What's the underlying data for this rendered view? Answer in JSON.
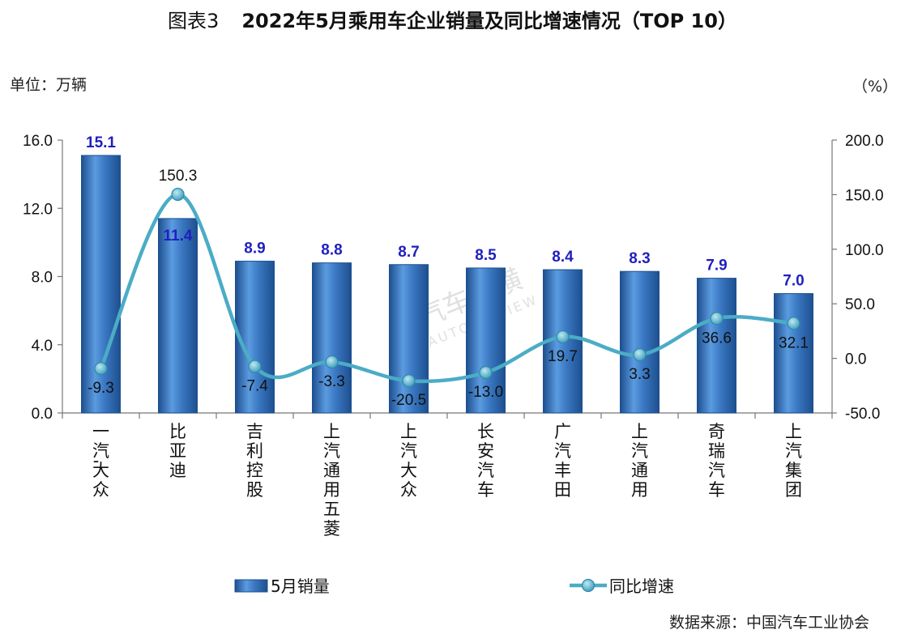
{
  "header": {
    "prefix": "图表3",
    "title": "2022年5月乘用车企业销量及同比增速情况（TOP 10）"
  },
  "unit_left": "单位：万辆",
  "unit_right": "（%）",
  "source": "数据来源：中国汽车工业协会",
  "watermark": {
    "cn": "汽车纵横",
    "en": "AUTO REVIEW"
  },
  "colors": {
    "bar": "#3a78c2",
    "bar_dark": "#1d4f8f",
    "line": "#4bacc6",
    "bar_label": "#1f1fbf"
  },
  "chart_data": {
    "type": "bar",
    "categories": [
      "一汽-大众",
      "比亚迪",
      "吉利控股",
      "上汽通用五菱",
      "上汽大众",
      "长安汽车",
      "广汽丰田",
      "上汽通用",
      "奇瑞汽车",
      "上汽集团"
    ],
    "series": [
      {
        "name": "5月销量",
        "type": "bar",
        "axis": "left",
        "values": [
          15.1,
          11.4,
          8.9,
          8.8,
          8.7,
          8.5,
          8.4,
          8.3,
          7.9,
          7.0
        ],
        "labels": [
          "15.1",
          "11.4",
          "8.9",
          "8.8",
          "8.7",
          "8.5",
          "8.4",
          "8.3",
          "7.9",
          "7.0"
        ]
      },
      {
        "name": "同比增速",
        "type": "line",
        "axis": "right",
        "values": [
          -9.3,
          150.3,
          -7.4,
          -3.3,
          -20.5,
          -13.0,
          19.7,
          3.3,
          36.6,
          32.1
        ],
        "labels": [
          "-9.3",
          "150.3",
          "-7.4",
          "-3.3",
          "-20.5",
          "-13.0",
          "19.7",
          "3.3",
          "36.6",
          "32.1"
        ]
      }
    ],
    "left_axis": {
      "min": 0,
      "max": 16,
      "ticks": [
        "0.0",
        "4.0",
        "8.0",
        "12.0",
        "16.0"
      ]
    },
    "right_axis": {
      "min": -50,
      "max": 200,
      "ticks": [
        "-50.0",
        "0.0",
        "50.0",
        "100.0",
        "150.0",
        "200.0"
      ]
    },
    "grid": false,
    "legend_position": "bottom"
  }
}
